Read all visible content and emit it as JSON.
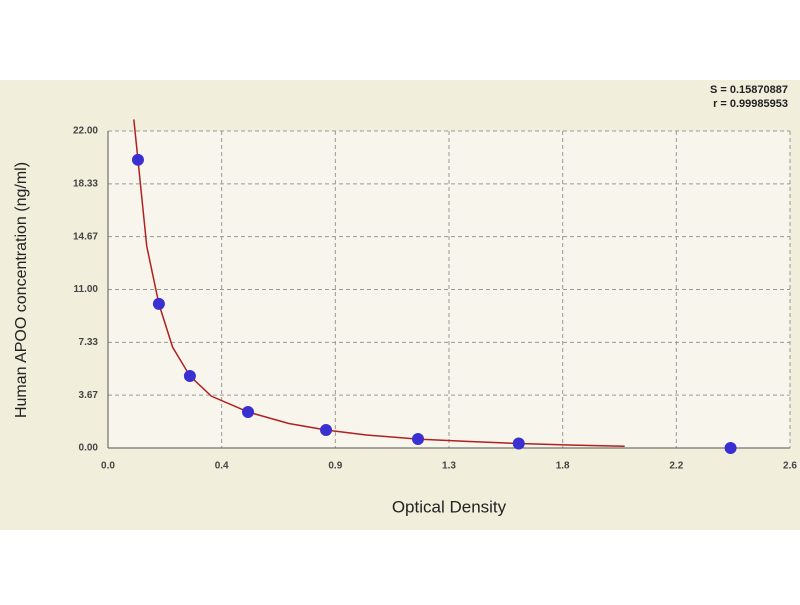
{
  "chart_data": {
    "type": "scatter",
    "x_label": "Optical Density",
    "y_label": "Human APOO concentration (ng/ml)",
    "annotations": [
      "S = 0.15870887",
      "r = 0.99985953"
    ],
    "xlim": [
      0,
      2.64
    ],
    "ylim": [
      0,
      22
    ],
    "xticks": [
      {
        "value": 0,
        "label": "0.0"
      },
      {
        "value": 0.44,
        "label": "0.4"
      },
      {
        "value": 0.88,
        "label": "0.9"
      },
      {
        "value": 1.32,
        "label": "1.3"
      },
      {
        "value": 1.76,
        "label": "1.8"
      },
      {
        "value": 2.2,
        "label": "2.2"
      },
      {
        "value": 2.64,
        "label": "2.6"
      }
    ],
    "yticks": [
      {
        "value": 0,
        "label": "0.00"
      },
      {
        "value": 3.6667,
        "label": "3.67"
      },
      {
        "value": 7.3333,
        "label": "7.33"
      },
      {
        "value": 11,
        "label": "11.00"
      },
      {
        "value": 14.6667,
        "label": "14.67"
      },
      {
        "value": 18.3333,
        "label": "18.33"
      },
      {
        "value": 22,
        "label": "22.00"
      }
    ],
    "grid": true,
    "series": [
      {
        "color": "#3a2fd0",
        "x": [
          0.116,
          0.197,
          0.317,
          0.542,
          0.844,
          1.2,
          1.59,
          2.41
        ],
        "values": [
          20,
          10,
          5,
          2.5,
          1.25,
          0.625,
          0.31,
          0
        ]
      }
    ],
    "fit": {
      "color": "#b02020",
      "x": [
        0.1,
        0.116,
        0.15,
        0.197,
        0.25,
        0.317,
        0.4,
        0.542,
        0.7,
        0.844,
        1.0,
        1.2,
        1.4,
        1.59,
        1.8,
        2.0
      ],
      "values": [
        22.8,
        20,
        14,
        10,
        7,
        5,
        3.6,
        2.5,
        1.7,
        1.25,
        0.9,
        0.62,
        0.45,
        0.31,
        0.2,
        0.12
      ]
    }
  }
}
